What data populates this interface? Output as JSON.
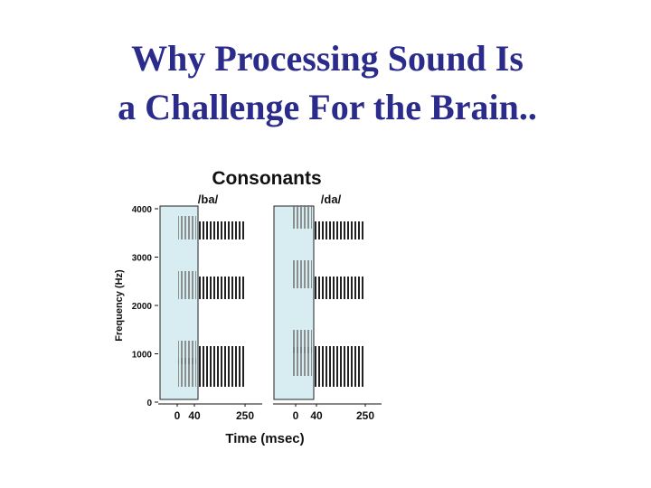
{
  "title": {
    "line1": "Why Processing Sound Is",
    "line2": "a Challenge For the Brain.."
  },
  "figure": {
    "title": "Consonants",
    "y_label": "Frequency (Hz)",
    "x_label": "Time (msec)",
    "ylim": [
      0,
      4000
    ],
    "yticks": [
      0,
      1000,
      2000,
      3000,
      4000
    ],
    "panels": [
      {
        "label": "/ba/",
        "xticks": [
          0,
          40,
          250
        ]
      },
      {
        "label": "/da/",
        "xticks": [
          0,
          40,
          250
        ]
      }
    ]
  }
}
